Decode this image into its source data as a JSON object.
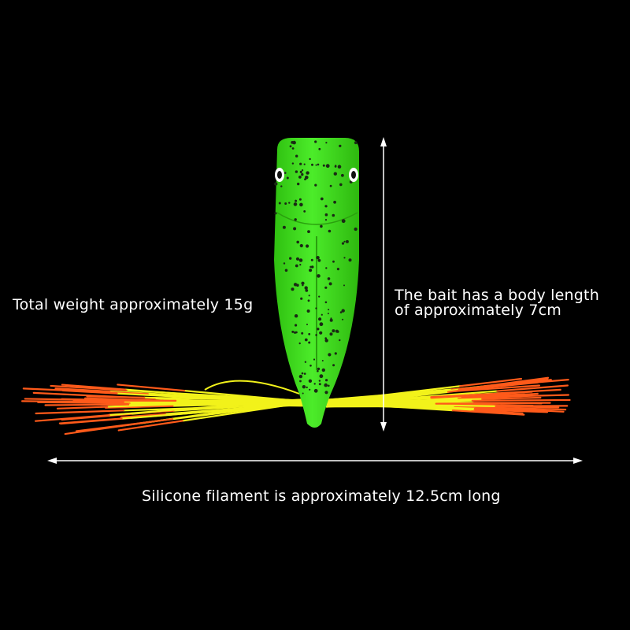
{
  "annotations": {
    "weight": "Total weight approximately 15g",
    "body_length_line1": "The bait has a body length",
    "body_length_line2": "of approximately 7cm",
    "filament_length": "Silicone filament is approximately 12.5cm long"
  },
  "colors": {
    "background": "#000000",
    "body": "#3fe01c",
    "skirt_inner": "#f2f21a",
    "skirt_outer": "#ff5a1a",
    "text": "#ffffff"
  }
}
